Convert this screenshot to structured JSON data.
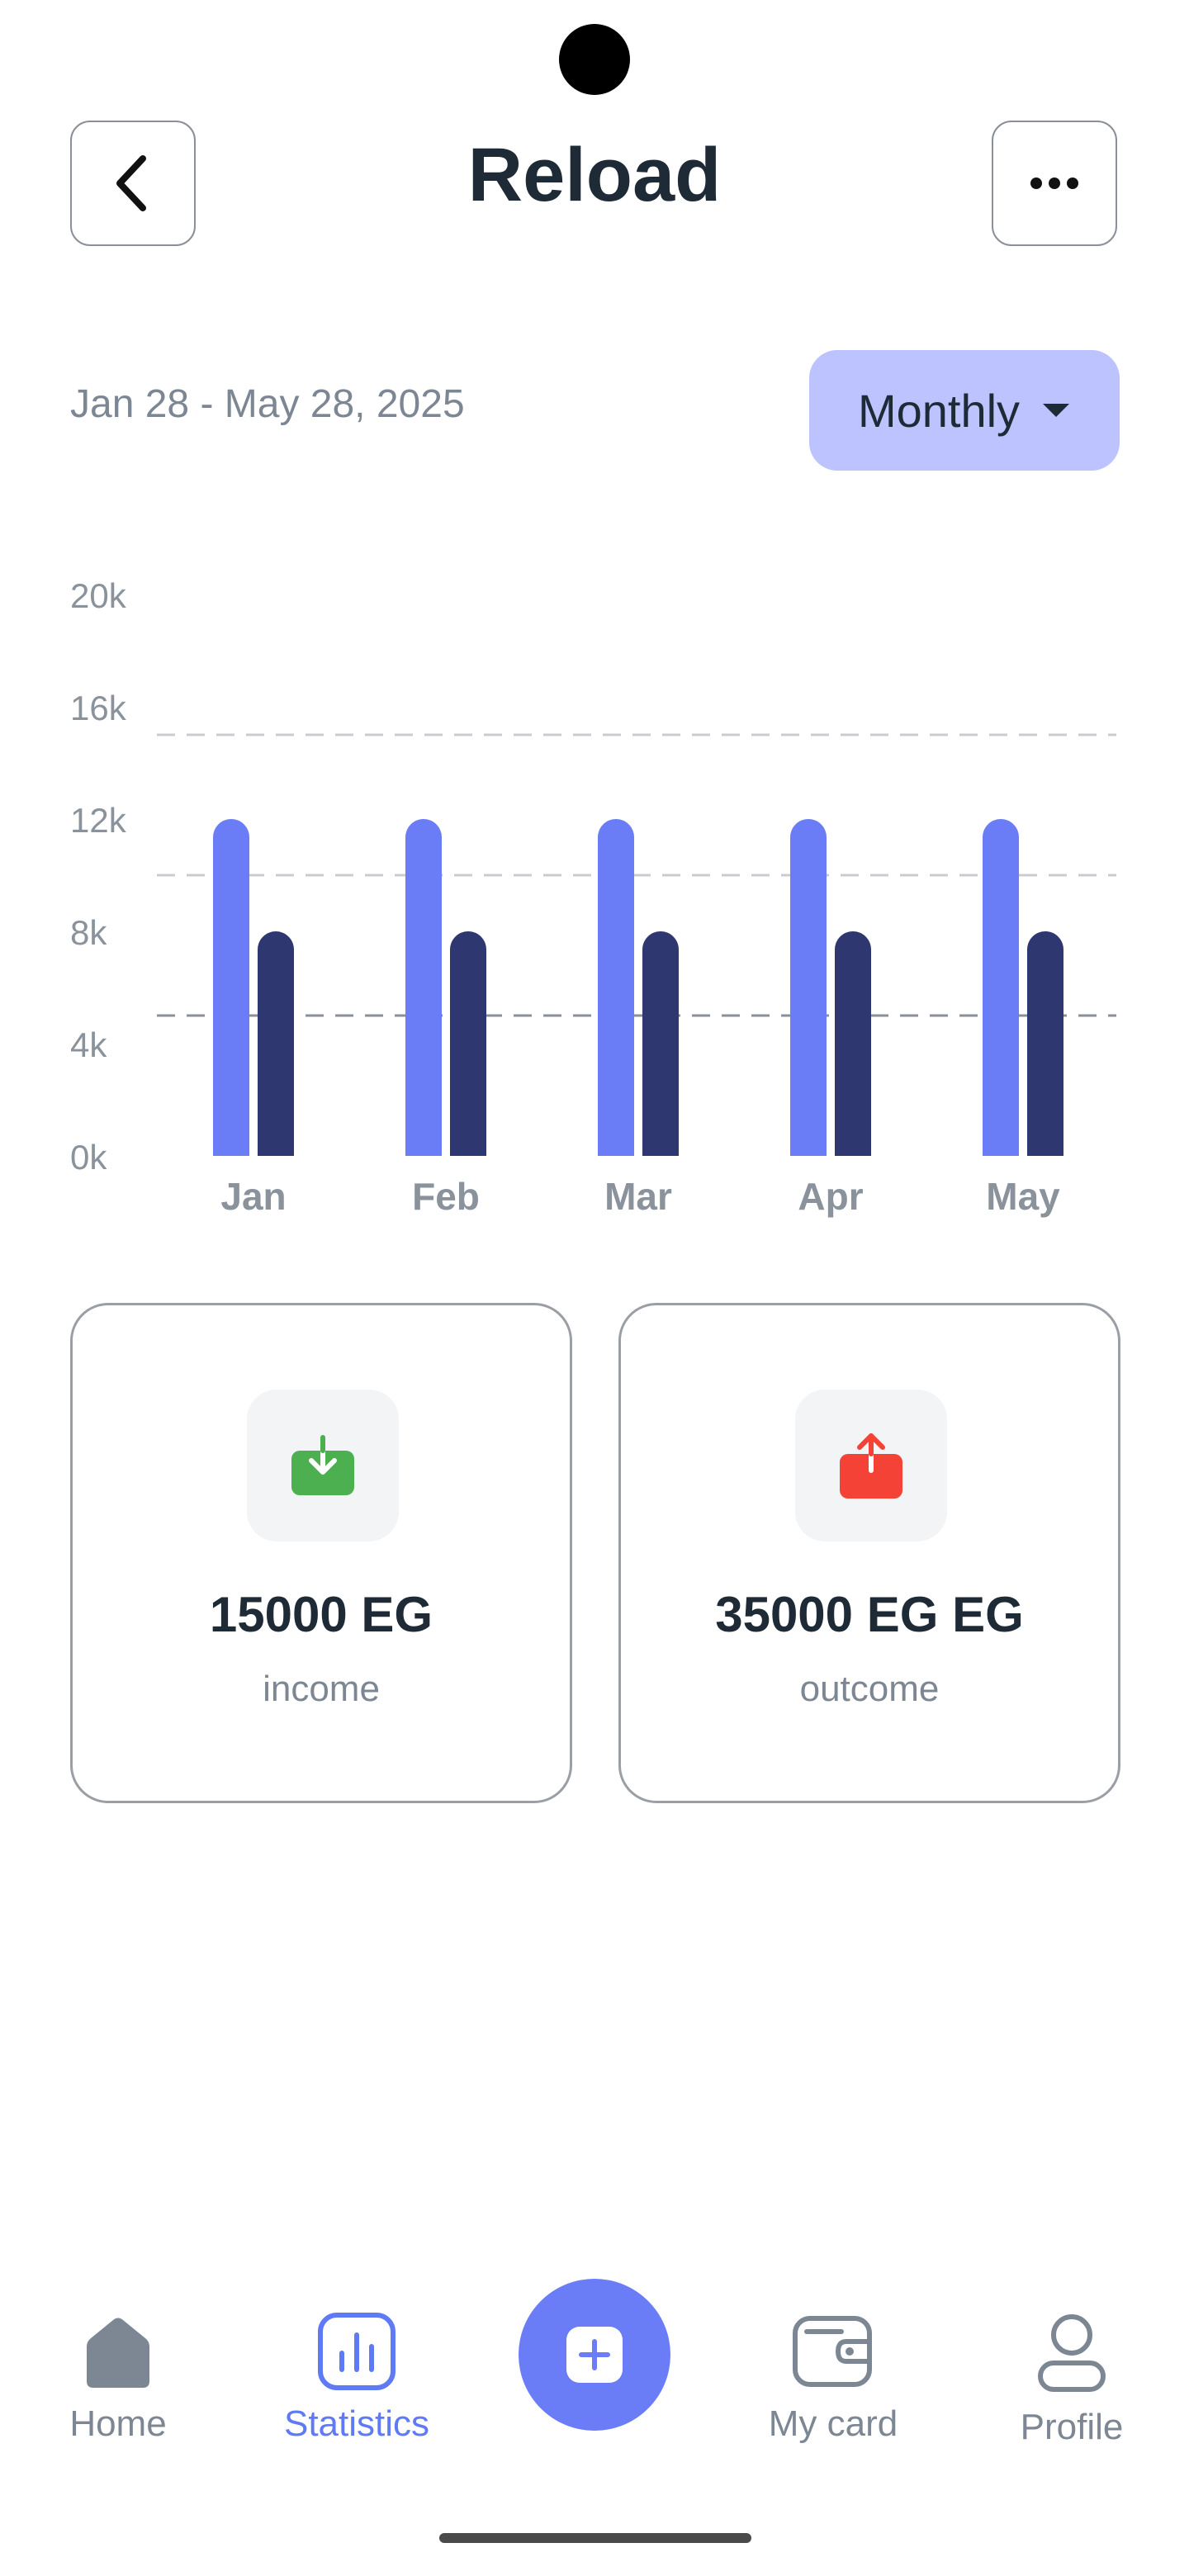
{
  "header": {
    "title": "Reload",
    "back_icon": "chevron-left-icon",
    "more_icon": "more-horizontal-icon"
  },
  "filter": {
    "date_range": "Jan 28 - May 28, 2025",
    "period_selected": "Monthly"
  },
  "chart_data": {
    "type": "bar",
    "categories": [
      "Jan",
      "Feb",
      "Mar",
      "Apr",
      "May"
    ],
    "series": [
      {
        "values": [
          12,
          12,
          12,
          12,
          12
        ],
        "color": "#6a7cf6"
      },
      {
        "values": [
          8,
          8,
          8,
          8,
          8
        ],
        "color": "#2f3770"
      }
    ],
    "y_ticks": [
      "20k",
      "16k",
      "12k",
      "8k",
      "4k",
      "0k"
    ],
    "ylim": [
      0,
      20
    ],
    "grid": "dashed"
  },
  "cards": {
    "income": {
      "amount": "15000 EG",
      "label": "income",
      "color": "#4caf50"
    },
    "outcome": {
      "amount": "35000 EG EG",
      "label": "outcome",
      "color": "#f44336"
    }
  },
  "nav": {
    "home": "Home",
    "statistics": "Statistics",
    "mycard": "My card",
    "profile": "Profile",
    "active": "statistics"
  },
  "colors": {
    "accent": "#6a7cf6",
    "dropdown_bg": "#bcc3ff"
  }
}
